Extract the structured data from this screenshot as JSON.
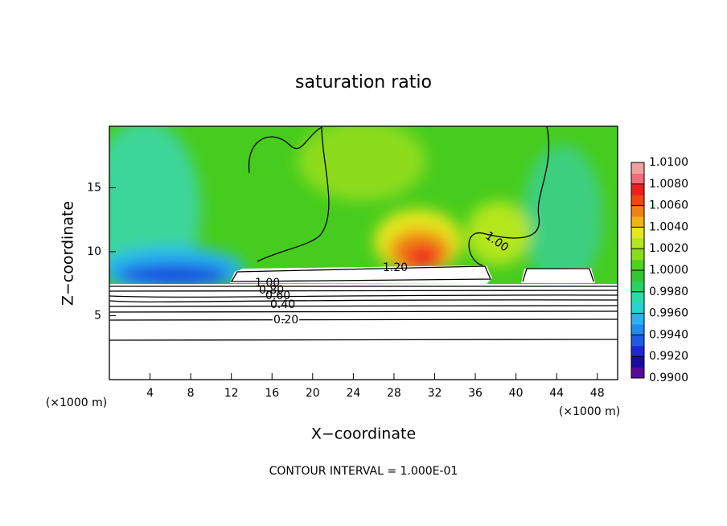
{
  "chart_data": {
    "type": "contour",
    "title": "saturation ratio",
    "xlabel": "X−coordinate",
    "ylabel": "Z−coordinate",
    "x_unit": "(×1000 m)",
    "note": "CONTOUR INTERVAL = 1.000E-01",
    "xlim": [
      0,
      50
    ],
    "ylim": [
      0,
      19.8
    ],
    "xticks": [
      4,
      8,
      12,
      16,
      20,
      24,
      28,
      32,
      36,
      40,
      44,
      48
    ],
    "yticks": [
      5,
      10,
      15
    ],
    "contour_labels": [
      "1.00",
      "1.20",
      "1.00",
      "0.80",
      "0.60",
      "0.40",
      "0.20"
    ],
    "colorbar": {
      "lim": [
        0.99,
        1.01
      ],
      "ticks": [
        {
          "value": 0.99,
          "label": "0.9900"
        },
        {
          "value": 0.992,
          "label": "0.9920"
        },
        {
          "value": 0.994,
          "label": "0.9940"
        },
        {
          "value": 0.996,
          "label": "0.9960"
        },
        {
          "value": 0.998,
          "label": "0.9980"
        },
        {
          "value": 1.0,
          "label": "1.0000"
        },
        {
          "value": 1.002,
          "label": "1.0020"
        },
        {
          "value": 1.004,
          "label": "1.0040"
        },
        {
          "value": 1.006,
          "label": "1.0060"
        },
        {
          "value": 1.008,
          "label": "1.0080"
        },
        {
          "value": 1.01,
          "label": "1.0100"
        }
      ],
      "colors": [
        "#5a0a9a",
        "#1a0aa0",
        "#1e28d8",
        "#1e5ae6",
        "#1e8cf0",
        "#28b4f0",
        "#28d2d2",
        "#28dcaa",
        "#28d264",
        "#32c832",
        "#50d21e",
        "#8cdc1e",
        "#b4e61e",
        "#e6e61e",
        "#f0b414",
        "#f08214",
        "#f04614",
        "#f01e1e",
        "#f06e78",
        "#f0a0a0"
      ]
    }
  }
}
